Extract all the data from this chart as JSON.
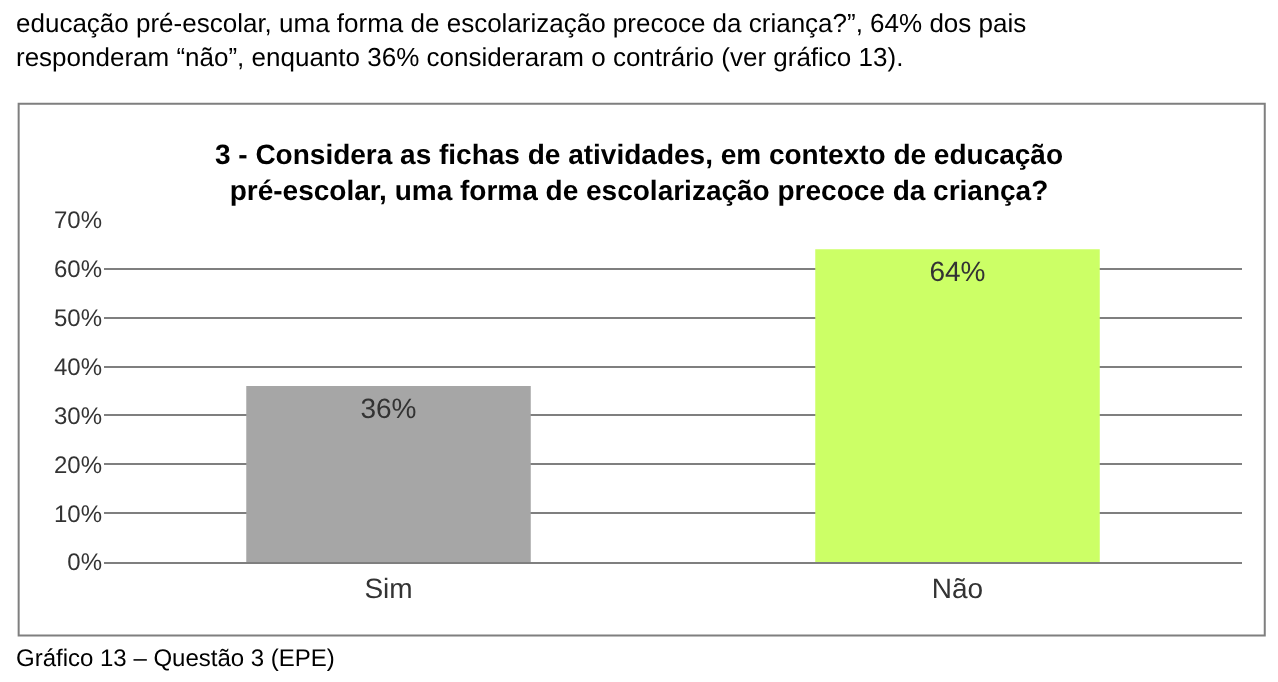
{
  "chart_data": {
    "type": "bar",
    "title": "3 - Considera as fichas de atividades, em contexto de educação pré-escolar, uma forma de escolarização precoce da criança?",
    "categories": [
      "Sim",
      "Não"
    ],
    "values": [
      36,
      64
    ],
    "colors": [
      "#a6a6a6",
      "#ccff66"
    ],
    "value_labels": [
      "36%",
      "64%"
    ],
    "ylim": [
      0,
      70
    ],
    "yticks": [
      {
        "value": 0,
        "label": "0%"
      },
      {
        "value": 10,
        "label": "10%"
      },
      {
        "value": 20,
        "label": "20%"
      },
      {
        "value": 30,
        "label": "30%"
      },
      {
        "value": 40,
        "label": "40%"
      },
      {
        "value": 50,
        "label": "50%"
      },
      {
        "value": 60,
        "label": "60%"
      },
      {
        "value": 70,
        "label": "70%"
      }
    ],
    "grid": "y",
    "legend": false,
    "annotations": [
      "educação pré-escolar, uma forma de escolarização precoce da criança?”, 64% dos pais responderam “não”, enquanto 36% consideraram o contrário (ver gráfico 13).",
      "Gráfico 13 – Questão 3 (EPE)"
    ]
  }
}
